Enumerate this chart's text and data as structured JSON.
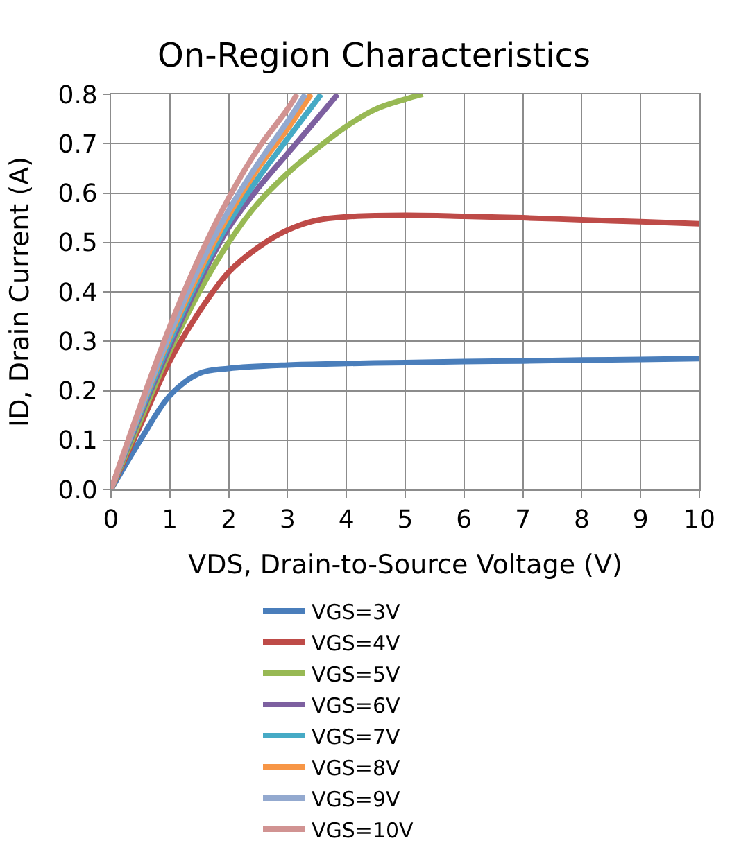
{
  "chart_data": {
    "type": "line",
    "title": "On-Region Characteristics",
    "xlabel": "VDS, Drain-to-Source Voltage (V)",
    "ylabel": "ID, Drain Current (A)",
    "xlim": [
      0,
      10
    ],
    "xticks": [
      0,
      1,
      2,
      3,
      4,
      5,
      6,
      7,
      8,
      9,
      10
    ],
    "ylim": [
      0,
      0.8
    ],
    "yticks": [
      {
        "value": 0,
        "label": "0.0"
      },
      {
        "value": 0.1,
        "label": "0.1"
      },
      {
        "value": 0.2,
        "label": "0.2"
      },
      {
        "value": 0.3,
        "label": "0.3"
      },
      {
        "value": 0.4,
        "label": "0.4"
      },
      {
        "value": 0.5,
        "label": "0.5"
      },
      {
        "value": 0.6,
        "label": "0.6"
      },
      {
        "value": 0.7,
        "label": "0.7"
      },
      {
        "value": 0.8,
        "label": "0.8"
      }
    ],
    "grid": true,
    "legend": "bottom",
    "marker": "none",
    "line_style": "solid",
    "series": [
      {
        "name": "VGS=3V",
        "color": "#4a7ebb",
        "x": [
          0,
          0.5,
          1,
          1.5,
          2,
          3,
          4,
          5,
          6,
          7,
          8,
          9,
          10
        ],
        "values": [
          0,
          0.1,
          0.19,
          0.235,
          0.245,
          0.252,
          0.255,
          0.257,
          0.259,
          0.26,
          0.262,
          0.263,
          0.265
        ]
      },
      {
        "name": "VGS=4V",
        "color": "#be4b48",
        "x": [
          0,
          0.5,
          1,
          1.5,
          2,
          2.5,
          3,
          3.5,
          4,
          5,
          6,
          7,
          8,
          9,
          10
        ],
        "values": [
          0,
          0.13,
          0.26,
          0.36,
          0.44,
          0.49,
          0.525,
          0.545,
          0.552,
          0.555,
          0.553,
          0.55,
          0.546,
          0.542,
          0.538
        ]
      },
      {
        "name": "VGS=5V",
        "color": "#98b954",
        "x": [
          0,
          0.5,
          1,
          1.5,
          2,
          2.5,
          3,
          3.5,
          4,
          4.5,
          5,
          5.3
        ],
        "values": [
          0,
          0.14,
          0.28,
          0.4,
          0.5,
          0.58,
          0.64,
          0.69,
          0.735,
          0.77,
          0.79,
          0.8
        ]
      },
      {
        "name": "VGS=6V",
        "color": "#7d60a0",
        "x": [
          0,
          0.5,
          1,
          1.5,
          2,
          2.5,
          3,
          3.5,
          3.85
        ],
        "values": [
          0,
          0.15,
          0.29,
          0.42,
          0.53,
          0.61,
          0.68,
          0.75,
          0.8
        ]
      },
      {
        "name": "VGS=7V",
        "color": "#46aac5",
        "x": [
          0,
          0.5,
          1,
          1.5,
          2,
          2.5,
          3,
          3.57
        ],
        "values": [
          0,
          0.155,
          0.3,
          0.43,
          0.54,
          0.63,
          0.71,
          0.8
        ]
      },
      {
        "name": "VGS=8V",
        "color": "#f79646",
        "x": [
          0,
          0.5,
          1,
          1.5,
          2,
          2.5,
          3,
          3.4
        ],
        "values": [
          0,
          0.16,
          0.31,
          0.44,
          0.555,
          0.65,
          0.73,
          0.8
        ]
      },
      {
        "name": "VGS=9V",
        "color": "#93a9cf",
        "x": [
          0,
          0.5,
          1,
          1.5,
          2,
          2.5,
          3,
          3.3
        ],
        "values": [
          0,
          0.162,
          0.315,
          0.45,
          0.565,
          0.66,
          0.745,
          0.8
        ]
      },
      {
        "name": "VGS=10V",
        "color": "#d19392",
        "x": [
          0,
          0.5,
          1,
          1.5,
          2,
          2.5,
          3,
          3.16
        ],
        "values": [
          0,
          0.17,
          0.33,
          0.47,
          0.59,
          0.69,
          0.77,
          0.8
        ]
      }
    ]
  }
}
